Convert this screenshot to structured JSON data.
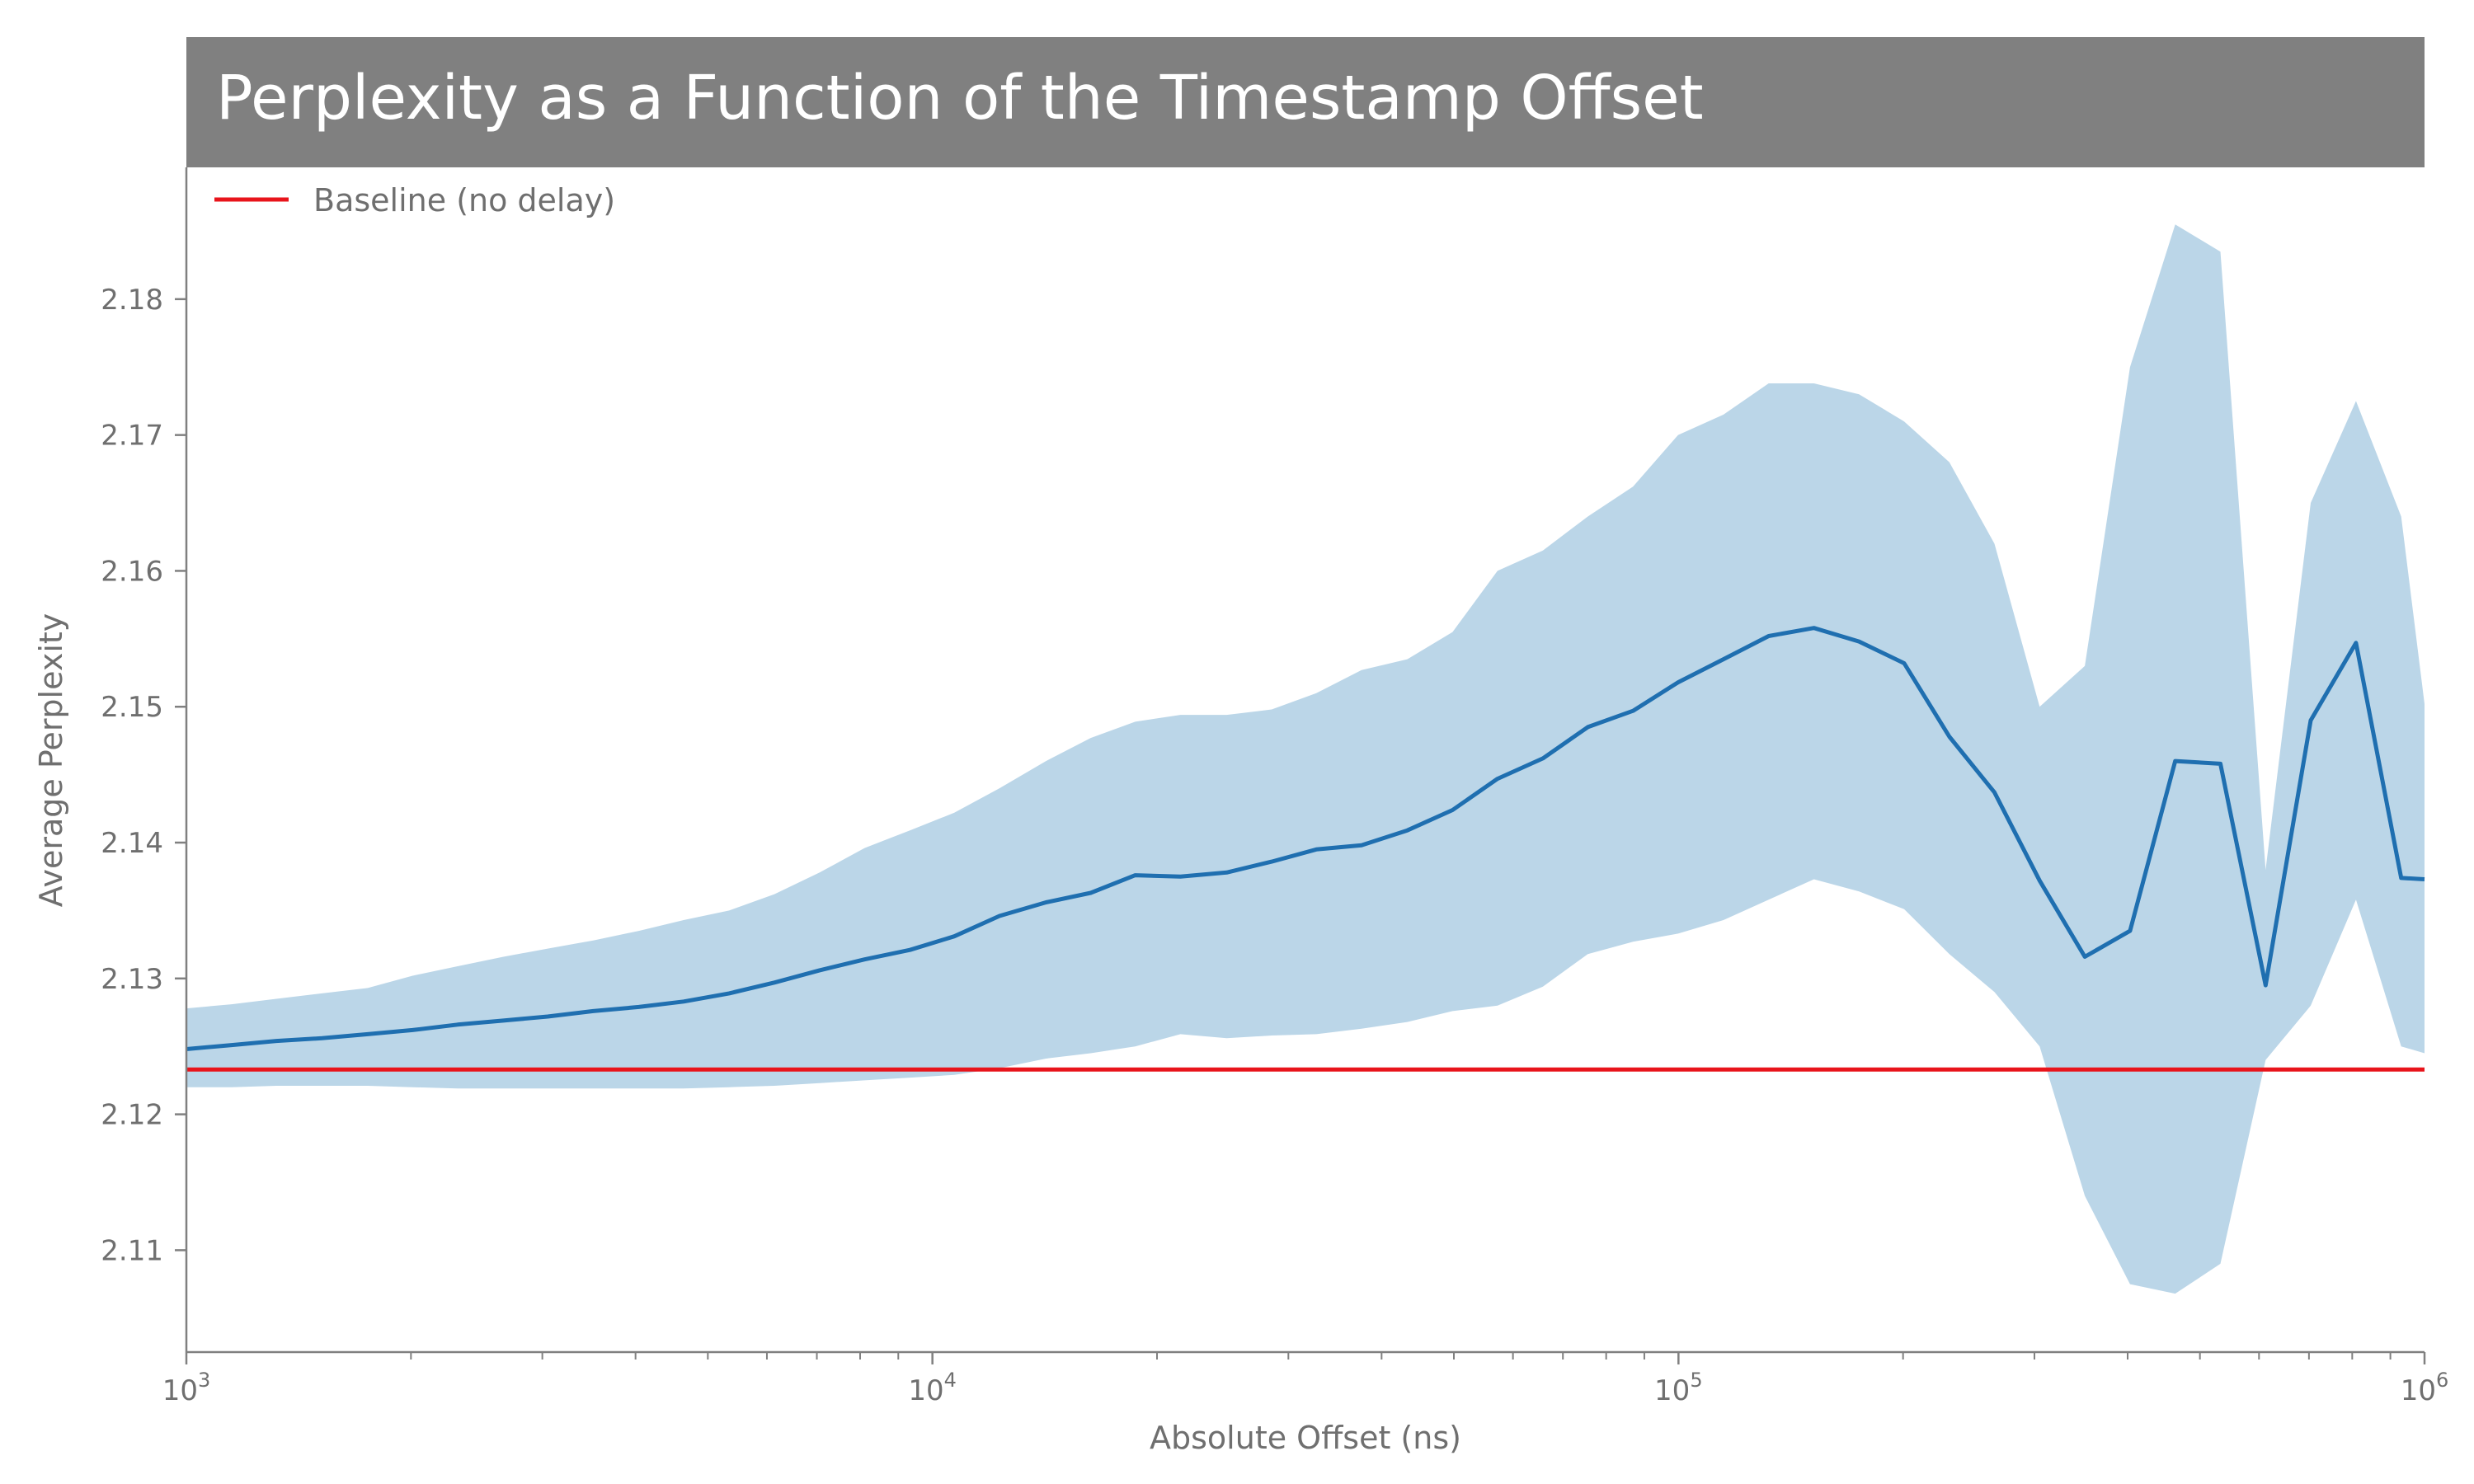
{
  "colors": {
    "title_bar": "#808080",
    "title_text": "#ffffff",
    "mean_line": "#1f6fb0",
    "band_fill": "#bbd6e8",
    "baseline": "#e8141b",
    "axis": "#808080",
    "text": "#6f6f6f"
  },
  "chart_data": {
    "type": "line",
    "title": "Perplexity as a Function of the Timestamp Offset",
    "xlabel": "Absolute Offset (ns)",
    "ylabel": "Average Perplexity",
    "xscale": "log",
    "xlim": [
      1000,
      1000000
    ],
    "ylim": [
      2.1025,
      2.1897
    ],
    "grid": false,
    "legend_position": "top-left",
    "x_ticks": [
      {
        "value": 1000,
        "base": "10",
        "exp": "3"
      },
      {
        "value": 10000,
        "base": "10",
        "exp": "4"
      },
      {
        "value": 100000,
        "base": "10",
        "exp": "5"
      },
      {
        "value": 1000000,
        "base": "10",
        "exp": "6"
      }
    ],
    "y_ticks": [
      {
        "value": 2.11,
        "label": "2.11"
      },
      {
        "value": 2.12,
        "label": "2.12"
      },
      {
        "value": 2.13,
        "label": "2.13"
      },
      {
        "value": 2.14,
        "label": "2.14"
      },
      {
        "value": 2.15,
        "label": "2.15"
      },
      {
        "value": 2.16,
        "label": "2.16"
      },
      {
        "value": 2.17,
        "label": "2.17"
      },
      {
        "value": 2.18,
        "label": "2.18"
      }
    ],
    "series": [
      {
        "type": "line",
        "x": [
          1000,
          1150,
          1320,
          1520,
          1750,
          2010,
          2310,
          2660,
          3050,
          3510,
          4040,
          4640,
          5340,
          6140,
          7060,
          8110,
          9330,
          10700,
          12300,
          14200,
          16300,
          18700,
          21500,
          24800,
          28500,
          32700,
          37600,
          43300,
          49800,
          57200,
          65800,
          75600,
          86900,
          99900,
          114900,
          132100,
          151900,
          174600,
          200700,
          230700,
          265200,
          304900,
          350500,
          403000,
          463300,
          532600,
          612300,
          703900,
          809300,
          930400,
          1000000
        ],
        "values": [
          2.1248,
          2.1251,
          2.1254,
          2.1256,
          2.1259,
          2.1262,
          2.1266,
          2.1269,
          2.1272,
          2.1276,
          2.1279,
          2.1283,
          2.1289,
          2.1297,
          2.1306,
          2.1314,
          2.1321,
          2.1331,
          2.1346,
          2.1356,
          2.1363,
          2.1376,
          2.1375,
          2.1378,
          2.1386,
          2.1395,
          2.1398,
          2.1409,
          2.1424,
          2.1447,
          2.1462,
          2.1485,
          2.1497,
          2.1518,
          2.1535,
          2.1552,
          2.1558,
          2.1548,
          2.1532,
          2.1478,
          2.1437,
          2.1372,
          2.1316,
          2.1335,
          2.146,
          2.1458,
          2.1295,
          2.149,
          2.1547,
          2.1374,
          2.1373
        ]
      },
      {
        "type": "area",
        "x": [
          1000,
          1150,
          1320,
          1520,
          1750,
          2010,
          2310,
          2660,
          3050,
          3510,
          4040,
          4640,
          5340,
          6140,
          7060,
          8110,
          9330,
          10700,
          12300,
          14200,
          16300,
          18700,
          21500,
          24800,
          28500,
          32700,
          37600,
          43300,
          49800,
          57200,
          65800,
          75600,
          86900,
          99900,
          114900,
          132100,
          151900,
          174600,
          200700,
          230700,
          265200,
          304900,
          350500,
          403000,
          463300,
          532600,
          612300,
          703900,
          809300,
          930400,
          1000000
        ],
        "lower": [
          2.122,
          2.122,
          2.1221,
          2.1221,
          2.1221,
          2.122,
          2.1219,
          2.1219,
          2.1219,
          2.1219,
          2.1219,
          2.1219,
          2.122,
          2.1221,
          2.1223,
          2.1225,
          2.1227,
          2.1229,
          2.1234,
          2.1241,
          2.1245,
          2.125,
          2.1259,
          2.1256,
          2.1258,
          2.1259,
          2.1263,
          2.1268,
          2.1276,
          2.128,
          2.1294,
          2.1318,
          2.1327,
          2.1333,
          2.1343,
          2.1358,
          2.1373,
          2.1364,
          2.1351,
          2.1318,
          2.129,
          2.125,
          2.114,
          2.1075,
          2.1068,
          2.109,
          2.124,
          2.128,
          2.1358,
          2.125,
          2.1245
        ],
        "upper": [
          2.1278,
          2.1281,
          2.1285,
          2.1289,
          2.1293,
          2.1302,
          2.1309,
          2.1316,
          2.1322,
          2.1328,
          2.1335,
          2.1343,
          2.135,
          2.1362,
          2.1378,
          2.1396,
          2.1409,
          2.1422,
          2.144,
          2.146,
          2.1477,
          2.1489,
          2.1494,
          2.1494,
          2.1498,
          2.151,
          2.1527,
          2.1535,
          2.1555,
          2.16,
          2.1615,
          2.164,
          2.1662,
          2.17,
          2.1715,
          2.1738,
          2.1738,
          2.173,
          2.171,
          2.168,
          2.162,
          2.15,
          2.153,
          2.175,
          2.1855,
          2.1835,
          2.138,
          2.165,
          2.1725,
          2.164,
          2.1502
        ]
      },
      {
        "type": "hline",
        "name": "Baseline (no delay)",
        "value": 2.1233
      }
    ]
  }
}
